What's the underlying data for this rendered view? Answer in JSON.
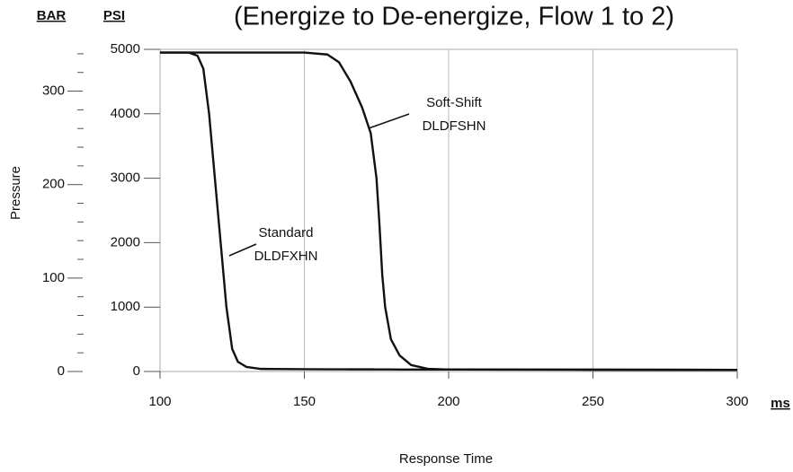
{
  "chart_data": {
    "type": "line",
    "title": "(Energize to De-energize, Flow 1 to 2)",
    "xlabel": "Response Time",
    "xunit": "ms",
    "ylabel": "Pressure",
    "yunit": "PSI",
    "y2unit": "BAR",
    "x": [
      100,
      110,
      113,
      115,
      117,
      119,
      121,
      123,
      125,
      127,
      130,
      135,
      150,
      158,
      162,
      166,
      170,
      173,
      175,
      176,
      177,
      178,
      180,
      183,
      187,
      193,
      200,
      250,
      300
    ],
    "series": [
      {
        "name": "Standard DLDFXHN",
        "color": "#111111",
        "values": [
          4950,
          4950,
          4900,
          4700,
          4000,
          3000,
          2000,
          1000,
          350,
          150,
          70,
          40,
          35,
          34,
          34,
          33,
          33,
          33,
          32,
          32,
          32,
          32,
          32,
          31,
          31,
          31,
          30,
          28,
          25
        ]
      },
      {
        "name": "Soft-Shift DLDFSHN",
        "color": "#111111",
        "values": [
          4950,
          4950,
          4950,
          4950,
          4950,
          4950,
          4950,
          4950,
          4950,
          4950,
          4950,
          4950,
          4950,
          4920,
          4800,
          4500,
          4100,
          3700,
          3000,
          2300,
          1500,
          1000,
          500,
          250,
          100,
          40,
          30,
          28,
          25
        ]
      }
    ],
    "annotations": [
      {
        "lines": [
          "Standard",
          "DLDFXHN"
        ],
        "series": 0
      },
      {
        "lines": [
          "Soft-Shift",
          "DLDFSHN"
        ],
        "series": 1
      }
    ],
    "xlim": [
      100,
      300
    ],
    "xticks": [
      100,
      150,
      200,
      250,
      300
    ],
    "ylim": [
      0,
      5000
    ],
    "yticks": [
      0,
      1000,
      2000,
      3000,
      4000,
      5000
    ],
    "y2lim": [
      0,
      344.7
    ],
    "y2ticks": [
      0,
      100,
      200,
      300
    ],
    "y2minorticks": [
      20,
      40,
      60,
      80,
      120,
      140,
      160,
      180,
      220,
      240,
      260,
      280,
      320,
      340
    ],
    "grid": "x"
  }
}
